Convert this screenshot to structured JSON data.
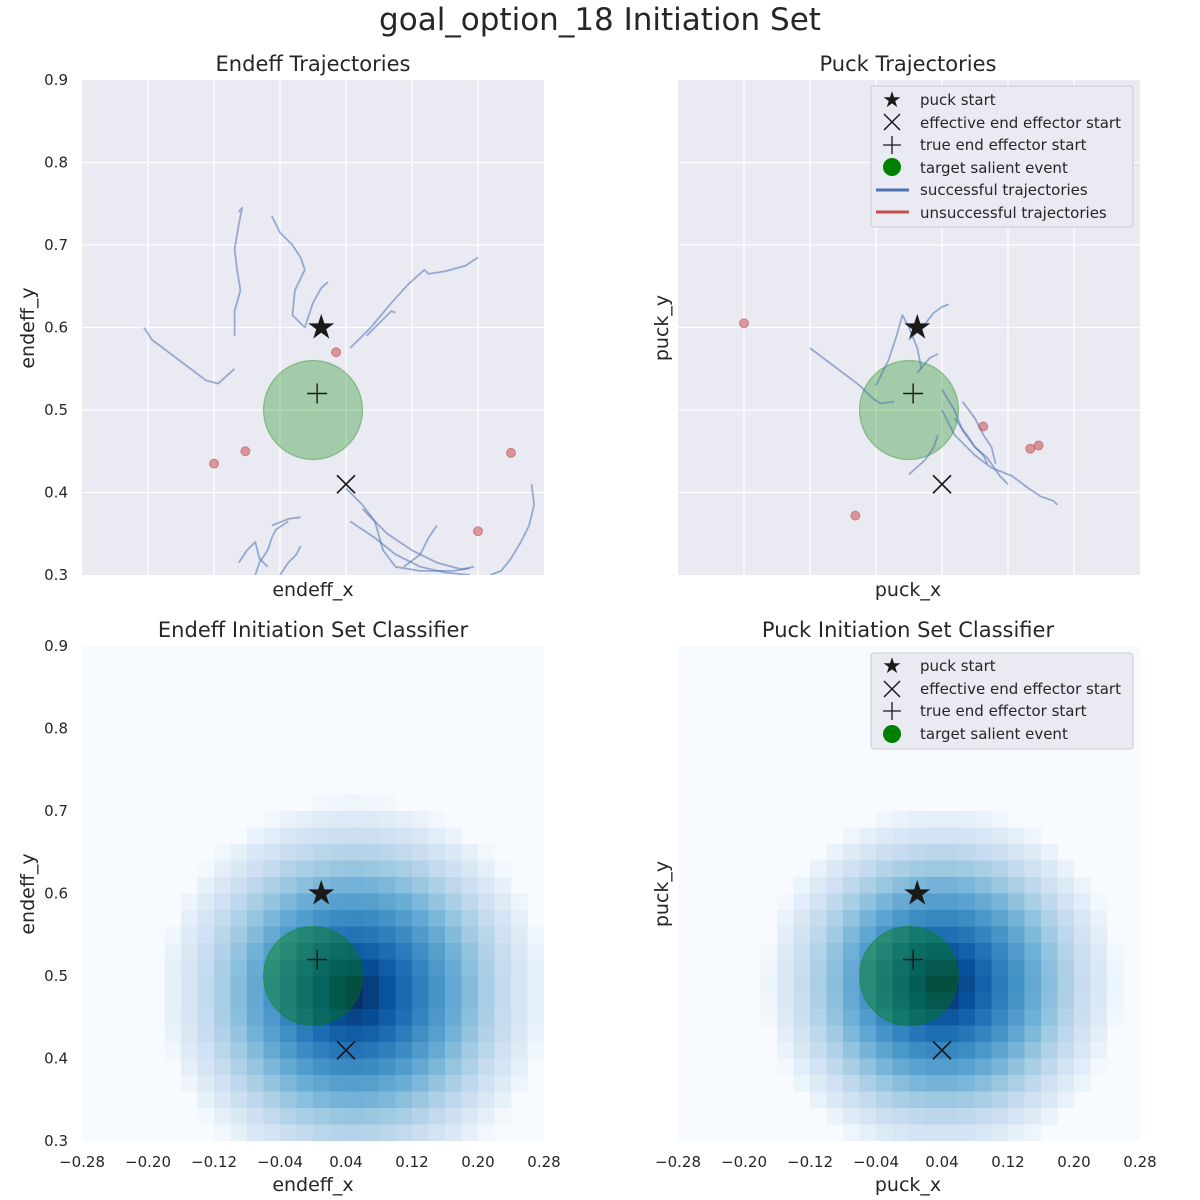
{
  "figure": {
    "title": "goal_option_18 Initiation Set"
  },
  "colors": {
    "axes_bg": "#eaeaf2",
    "grid": "#ffffff",
    "success": "#4c72b0",
    "failure": "#c44e52",
    "target": "#008000"
  },
  "markers": {
    "puck_start": [
      0.01,
      0.6
    ],
    "effective_endeff_start": [
      0.04,
      0.41
    ],
    "true_endeff_start": [
      0.005,
      0.52
    ],
    "target_center": [
      0.0,
      0.5
    ],
    "target_radius": 0.06
  },
  "legend": {
    "puck_start": "puck start",
    "effective_start": "effective end effector start",
    "true_start": "true end effector start",
    "target": "target salient event",
    "successful": "successful trajectories",
    "unsuccessful": "unsuccessful trajectories"
  },
  "chart_data": [
    {
      "type": "line",
      "title": "Endeff Trajectories",
      "xlabel": "endeff_x",
      "ylabel": "endeff_y",
      "xlim": [
        -0.28,
        0.28
      ],
      "ylim": [
        0.3,
        0.9
      ],
      "xticks_shown": false,
      "yticks": [
        "0.3",
        "0.4",
        "0.5",
        "0.6",
        "0.7",
        "0.8",
        "0.9"
      ],
      "grid": true,
      "legend": "none",
      "successful_trajectories": [
        [
          [
            -0.205,
            0.6
          ],
          [
            -0.195,
            0.585
          ],
          [
            -0.175,
            0.57
          ],
          [
            -0.155,
            0.555
          ],
          [
            -0.13,
            0.536
          ],
          [
            -0.115,
            0.532
          ],
          [
            -0.095,
            0.55
          ]
        ],
        [
          [
            -0.095,
            0.59
          ],
          [
            -0.095,
            0.62
          ],
          [
            -0.088,
            0.645
          ],
          [
            -0.092,
            0.67
          ],
          [
            -0.095,
            0.695
          ],
          [
            -0.09,
            0.725
          ],
          [
            -0.086,
            0.745
          ],
          [
            -0.09,
            0.74
          ]
        ],
        [
          [
            -0.05,
            0.735
          ],
          [
            -0.04,
            0.715
          ],
          [
            -0.025,
            0.7
          ],
          [
            -0.015,
            0.685
          ],
          [
            -0.01,
            0.67
          ],
          [
            -0.022,
            0.645
          ],
          [
            -0.025,
            0.615
          ],
          [
            -0.01,
            0.6
          ],
          [
            0.0,
            0.63
          ],
          [
            0.01,
            0.648
          ],
          [
            0.018,
            0.655
          ]
        ],
        [
          [
            0.045,
            0.575
          ],
          [
            0.07,
            0.6
          ],
          [
            0.095,
            0.63
          ],
          [
            0.115,
            0.652
          ],
          [
            0.135,
            0.67
          ],
          [
            0.14,
            0.665
          ],
          [
            0.16,
            0.668
          ],
          [
            0.185,
            0.675
          ],
          [
            0.2,
            0.685
          ]
        ],
        [
          [
            0.065,
            0.59
          ],
          [
            0.08,
            0.605
          ],
          [
            0.095,
            0.62
          ],
          [
            0.1,
            0.618
          ]
        ],
        [
          [
            0.04,
            0.405
          ],
          [
            0.06,
            0.385
          ],
          [
            0.075,
            0.365
          ],
          [
            0.085,
            0.33
          ],
          [
            0.1,
            0.31
          ],
          [
            0.13,
            0.305
          ],
          [
            0.17,
            0.305
          ],
          [
            0.19,
            0.308
          ]
        ],
        [
          [
            0.045,
            0.365
          ],
          [
            0.075,
            0.345
          ],
          [
            0.1,
            0.325
          ],
          [
            0.13,
            0.31
          ],
          [
            0.16,
            0.303
          ],
          [
            0.19,
            0.3
          ]
        ],
        [
          [
            0.06,
            0.38
          ],
          [
            0.09,
            0.35
          ],
          [
            0.12,
            0.33
          ],
          [
            0.15,
            0.315
          ],
          [
            0.18,
            0.307
          ],
          [
            0.195,
            0.31
          ]
        ],
        [
          [
            0.11,
            0.31
          ],
          [
            0.13,
            0.325
          ],
          [
            0.14,
            0.345
          ],
          [
            0.15,
            0.36
          ]
        ],
        [
          [
            0.265,
            0.41
          ],
          [
            0.268,
            0.385
          ],
          [
            0.262,
            0.36
          ],
          [
            0.252,
            0.34
          ],
          [
            0.24,
            0.32
          ],
          [
            0.228,
            0.305
          ],
          [
            0.215,
            0.3
          ]
        ],
        [
          [
            -0.07,
            0.3
          ],
          [
            -0.065,
            0.315
          ],
          [
            -0.055,
            0.33
          ],
          [
            -0.05,
            0.345
          ],
          [
            -0.045,
            0.355
          ],
          [
            -0.03,
            0.365
          ]
        ],
        [
          [
            -0.09,
            0.315
          ],
          [
            -0.08,
            0.33
          ],
          [
            -0.07,
            0.34
          ],
          [
            -0.065,
            0.32
          ],
          [
            -0.055,
            0.31
          ]
        ],
        [
          [
            -0.04,
            0.3
          ],
          [
            -0.03,
            0.315
          ],
          [
            -0.02,
            0.325
          ],
          [
            -0.015,
            0.335
          ]
        ],
        [
          [
            -0.05,
            0.36
          ],
          [
            -0.03,
            0.368
          ],
          [
            -0.015,
            0.37
          ]
        ]
      ],
      "unsuccessful_endpoints": [
        [
          -0.12,
          0.435
        ],
        [
          -0.082,
          0.45
        ],
        [
          0.028,
          0.57
        ],
        [
          0.24,
          0.448
        ],
        [
          0.2,
          0.353
        ]
      ]
    },
    {
      "type": "line",
      "title": "Puck Trajectories",
      "xlabel": "puck_x",
      "ylabel": "puck_y",
      "xlim": [
        -0.28,
        0.28
      ],
      "ylim": [
        0.3,
        0.9
      ],
      "xticks_shown": false,
      "yticks_shown": false,
      "grid": true,
      "legend": "top-right",
      "successful_trajectories": [
        [
          [
            -0.12,
            0.575
          ],
          [
            -0.1,
            0.56
          ],
          [
            -0.08,
            0.545
          ],
          [
            -0.06,
            0.53
          ],
          [
            -0.045,
            0.515
          ],
          [
            -0.035,
            0.508
          ],
          [
            -0.018,
            0.51
          ]
        ],
        [
          [
            -0.04,
            0.53
          ],
          [
            -0.025,
            0.56
          ],
          [
            -0.015,
            0.59
          ],
          [
            -0.008,
            0.615
          ],
          [
            0.0,
            0.6
          ],
          [
            0.01,
            0.575
          ],
          [
            0.015,
            0.55
          ]
        ],
        [
          [
            0.0,
            0.585
          ],
          [
            0.02,
            0.605
          ],
          [
            0.03,
            0.618
          ],
          [
            0.04,
            0.625
          ],
          [
            0.048,
            0.628
          ]
        ],
        [
          [
            0.01,
            0.545
          ],
          [
            0.025,
            0.563
          ],
          [
            0.035,
            0.568
          ]
        ],
        [
          [
            0.04,
            0.525
          ],
          [
            0.055,
            0.5
          ],
          [
            0.065,
            0.475
          ],
          [
            0.08,
            0.455
          ],
          [
            0.095,
            0.442
          ],
          [
            0.11,
            0.42
          ],
          [
            0.12,
            0.41
          ]
        ],
        [
          [
            0.04,
            0.5
          ],
          [
            0.055,
            0.47
          ],
          [
            0.08,
            0.445
          ],
          [
            0.1,
            0.43
          ],
          [
            0.125,
            0.42
          ],
          [
            0.145,
            0.405
          ],
          [
            0.16,
            0.395
          ],
          [
            0.175,
            0.39
          ],
          [
            0.18,
            0.385
          ]
        ],
        [
          [
            0.055,
            0.49
          ],
          [
            0.07,
            0.47
          ],
          [
            0.08,
            0.455
          ],
          [
            0.09,
            0.445
          ],
          [
            0.095,
            0.435
          ]
        ],
        [
          [
            0.065,
            0.51
          ],
          [
            0.08,
            0.49
          ],
          [
            0.09,
            0.47
          ],
          [
            0.1,
            0.455
          ],
          [
            0.105,
            0.435
          ]
        ],
        [
          [
            0.0,
            0.422
          ],
          [
            0.02,
            0.44
          ],
          [
            0.03,
            0.455
          ],
          [
            0.035,
            0.47
          ]
        ]
      ],
      "unsuccessful_endpoints": [
        [
          -0.2,
          0.605
        ],
        [
          -0.065,
          0.372
        ],
        [
          0.09,
          0.48
        ],
        [
          0.147,
          0.453
        ],
        [
          0.157,
          0.457
        ]
      ]
    },
    {
      "type": "heatmap",
      "title": "Endeff Initiation Set Classifier",
      "xlabel": "endeff_x",
      "ylabel": "endeff_y",
      "xlim": [
        -0.28,
        0.28
      ],
      "ylim": [
        0.3,
        0.9
      ],
      "xticks": [
        "−0.28",
        "−0.20",
        "−0.12",
        "−0.04",
        "0.04",
        "0.12",
        "0.20",
        "0.28"
      ],
      "yticks": [
        "0.3",
        "0.4",
        "0.5",
        "0.6",
        "0.7",
        "0.8",
        "0.9"
      ],
      "colormap": "Blues",
      "grid_cells": [
        28,
        30
      ],
      "classifier_center": [
        0.05,
        0.48
      ],
      "classifier_radius": 0.24,
      "legend": "none"
    },
    {
      "type": "heatmap",
      "title": "Puck Initiation Set Classifier",
      "xlabel": "puck_x",
      "ylabel": "puck_y",
      "xlim": [
        -0.28,
        0.28
      ],
      "ylim": [
        0.3,
        0.9
      ],
      "xticks": [
        "−0.28",
        "−0.20",
        "−0.12",
        "−0.04",
        "0.04",
        "0.12",
        "0.20",
        "0.28"
      ],
      "yticks_shown": false,
      "colormap": "Blues",
      "grid_cells": [
        28,
        30
      ],
      "classifier_center": [
        0.04,
        0.49
      ],
      "classifier_radius": 0.22,
      "legend": "top-right"
    }
  ]
}
